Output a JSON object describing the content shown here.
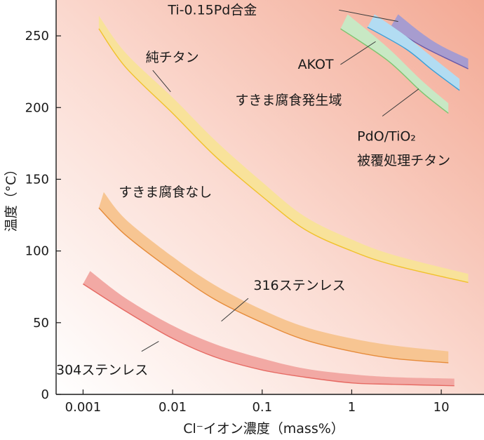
{
  "chart_data": {
    "type": "line",
    "xlabel": "Cl⁻イオン濃度（mass%）",
    "ylabel": "温度（°C）",
    "x_scale": "log",
    "xlim": [
      0.0005,
      30
    ],
    "ylim": [
      0,
      275
    ],
    "x_ticks": [
      0.001,
      0.01,
      0.1,
      1,
      10
    ],
    "x_tick_labels": [
      "0.001",
      "0.01",
      "0.1",
      "1",
      "10"
    ],
    "y_ticks": [
      0,
      50,
      100,
      150,
      200,
      250
    ],
    "y_tick_labels": [
      "0",
      "50",
      "100",
      "150",
      "200",
      "250"
    ],
    "grid": false,
    "series": [
      {
        "name": "Ti-0.15Pd合金",
        "fill": "#a79ccf",
        "edge": "#6a5aa8",
        "upper": [
          [
            3.3,
            265
          ],
          [
            6,
            252
          ],
          [
            10,
            243
          ],
          [
            20,
            234
          ]
        ],
        "lower": [
          [
            2.7,
            256
          ],
          [
            6,
            243
          ],
          [
            10,
            236
          ],
          [
            20,
            227
          ]
        ]
      },
      {
        "name": "AKOT",
        "fill": "#b2dcf2",
        "edge": "#3b9fd8",
        "upper": [
          [
            1.8,
            265
          ],
          [
            4,
            250
          ],
          [
            8,
            235
          ],
          [
            16,
            220
          ]
        ],
        "lower": [
          [
            1.5,
            256
          ],
          [
            4,
            241
          ],
          [
            8,
            226
          ],
          [
            16,
            212
          ]
        ]
      },
      {
        "name": "PdO/TiO₂ 被覆処理チタン",
        "fill": "#c8e8c4",
        "edge": "#7dc46f",
        "upper": [
          [
            0.9,
            265
          ],
          [
            2.5,
            242
          ],
          [
            6,
            219
          ],
          [
            12,
            203
          ]
        ],
        "lower": [
          [
            0.75,
            255
          ],
          [
            2.5,
            233
          ],
          [
            6,
            211
          ],
          [
            12,
            196
          ]
        ]
      },
      {
        "name": "純チタン",
        "fill": "#f8e29a",
        "edge": "#f1c12c",
        "upper": [
          [
            0.0015,
            264
          ],
          [
            0.003,
            238
          ],
          [
            0.01,
            207
          ],
          [
            0.03,
            177
          ],
          [
            0.1,
            148
          ],
          [
            0.3,
            124
          ],
          [
            1,
            108
          ],
          [
            3,
            97
          ],
          [
            20,
            84
          ]
        ],
        "lower": [
          [
            0.0015,
            255
          ],
          [
            0.003,
            228
          ],
          [
            0.01,
            196
          ],
          [
            0.03,
            166
          ],
          [
            0.1,
            138
          ],
          [
            0.3,
            115
          ],
          [
            1,
            100
          ],
          [
            3,
            90
          ],
          [
            20,
            78
          ]
        ]
      },
      {
        "name": "316ステンレス",
        "fill": "#f7c592",
        "edge": "#e68b3a",
        "upper": [
          [
            0.0017,
            141
          ],
          [
            0.003,
            122
          ],
          [
            0.01,
            96
          ],
          [
            0.03,
            76
          ],
          [
            0.1,
            59
          ],
          [
            0.3,
            47
          ],
          [
            1,
            39
          ],
          [
            3,
            34
          ],
          [
            12,
            30
          ]
        ],
        "lower": [
          [
            0.0015,
            130
          ],
          [
            0.003,
            111
          ],
          [
            0.01,
            86
          ],
          [
            0.03,
            66
          ],
          [
            0.1,
            50
          ],
          [
            0.3,
            38
          ],
          [
            1,
            30
          ],
          [
            3,
            25
          ],
          [
            12,
            22
          ]
        ]
      },
      {
        "name": "304ステンレス",
        "fill": "#f2a9a4",
        "edge": "#e66a63",
        "upper": [
          [
            0.0012,
            86
          ],
          [
            0.003,
            67
          ],
          [
            0.01,
            48
          ],
          [
            0.03,
            35
          ],
          [
            0.1,
            25
          ],
          [
            0.3,
            18
          ],
          [
            1,
            14
          ],
          [
            3,
            12
          ],
          [
            14,
            11
          ]
        ],
        "lower": [
          [
            0.001,
            77
          ],
          [
            0.003,
            58
          ],
          [
            0.01,
            39
          ],
          [
            0.03,
            26
          ],
          [
            0.1,
            17
          ],
          [
            0.3,
            12
          ],
          [
            1,
            8
          ],
          [
            3,
            7
          ],
          [
            14,
            6
          ]
        ]
      }
    ],
    "annotations": [
      {
        "text": "純チタン",
        "x": 0.005,
        "y": 232,
        "leader": [
          [
            0.006,
            226
          ],
          [
            0.0095,
            211
          ]
        ]
      },
      {
        "text": "すきま腐食発生域",
        "x": 0.05,
        "y": 202
      },
      {
        "text": "すきま腐食なし",
        "x": 0.0025,
        "y": 138
      },
      {
        "text": "316ステンレス",
        "x": 0.08,
        "y": 73,
        "leader": [
          [
            0.07,
            67
          ],
          [
            0.035,
            51
          ]
        ]
      },
      {
        "text": "304ステンレス",
        "x": 0.0005,
        "y": 14,
        "leader": [
          [
            0.0045,
            30
          ],
          [
            0.007,
            37
          ]
        ]
      },
      {
        "text": "Ti-0.15Pd合金",
        "x": 0.00885,
        "y": 265,
        "leader": [
          [
            0.72,
            268
          ],
          [
            3.3,
            260
          ]
        ]
      },
      {
        "text": "AKOT",
        "x": 0.25,
        "y": 227,
        "leader": [
          [
            0.75,
            230
          ],
          [
            1.85,
            246
          ]
        ]
      },
      {
        "text": "PdO/TiO₂",
        "x": 1.15,
        "y": 177,
        "leader": [
          [
            2.2,
            194
          ],
          [
            5.6,
            213
          ]
        ]
      },
      {
        "text": "被覆処理チタン",
        "x": 1.15,
        "y": 160
      }
    ]
  }
}
